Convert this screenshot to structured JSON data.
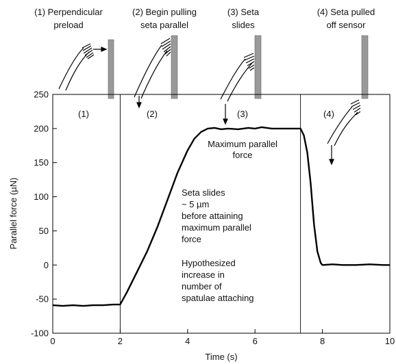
{
  "chart_data": {
    "type": "line",
    "title": "",
    "xlabel": "Time (s)",
    "ylabel": "Parallel force (µN)",
    "xlim": [
      0,
      10
    ],
    "ylim": [
      -100,
      250
    ],
    "x_ticks": [
      {
        "v": 0,
        "label": "0"
      },
      {
        "v": 2,
        "label": "2"
      },
      {
        "v": 4,
        "label": "4"
      },
      {
        "v": 6,
        "label": "6"
      },
      {
        "v": 8,
        "label": "8"
      },
      {
        "v": 10,
        "label": "10"
      }
    ],
    "y_ticks": [
      {
        "v": -100,
        "label": "-100"
      },
      {
        "v": -50,
        "label": "-50"
      },
      {
        "v": 0,
        "label": "0"
      },
      {
        "v": 50,
        "label": "50"
      },
      {
        "v": 100,
        "label": "100"
      },
      {
        "v": 150,
        "label": "150"
      },
      {
        "v": 200,
        "label": "200"
      },
      {
        "v": 250,
        "label": "250"
      }
    ],
    "phase_boundaries": [
      2.0,
      7.35
    ],
    "phase_labels": [
      "(1)",
      "(2)",
      "(3)",
      "(4)"
    ],
    "stages": [
      {
        "lines": [
          "(1) Perpendicular",
          "preload"
        ]
      },
      {
        "lines": [
          "(2) Begin pulling",
          "seta parallel"
        ]
      },
      {
        "lines": [
          "(3) Seta",
          "slides"
        ]
      },
      {
        "lines": [
          "(4) Seta pulled",
          "off sensor"
        ]
      }
    ],
    "annotations": [
      {
        "lines": [
          "Maximum parallel",
          "force"
        ]
      },
      {
        "lines": [
          "Seta slides",
          "~ 5 µm",
          "before attaining",
          "maximum parallel",
          "force"
        ]
      },
      {
        "lines": [
          "Hypothesized",
          "increase in",
          "number of",
          "spatulae attaching"
        ]
      }
    ],
    "series": [
      {
        "x": [
          0,
          0.3,
          0.6,
          0.9,
          1.2,
          1.5,
          1.8,
          2.0,
          2.2,
          2.5,
          2.8,
          3.1,
          3.4,
          3.7,
          4.0,
          4.2,
          4.4,
          4.6,
          4.8,
          5.0,
          5.2,
          5.5,
          5.8,
          6.0,
          6.2,
          6.5,
          6.8,
          7.0,
          7.2,
          7.35,
          7.45,
          7.55,
          7.65,
          7.75,
          7.85,
          7.95,
          8.0,
          8.3,
          8.6,
          9.0,
          9.4,
          9.8,
          10.0
        ],
        "y": [
          -59,
          -60,
          -59,
          -60,
          -59,
          -59,
          -58,
          -58,
          -40,
          -10,
          20,
          55,
          95,
          135,
          168,
          185,
          195,
          200,
          201,
          199,
          200,
          199,
          201,
          200,
          202,
          200,
          200,
          200,
          200,
          200,
          190,
          165,
          120,
          60,
          20,
          3,
          0,
          1,
          0,
          0,
          1,
          0,
          0
        ]
      }
    ]
  }
}
